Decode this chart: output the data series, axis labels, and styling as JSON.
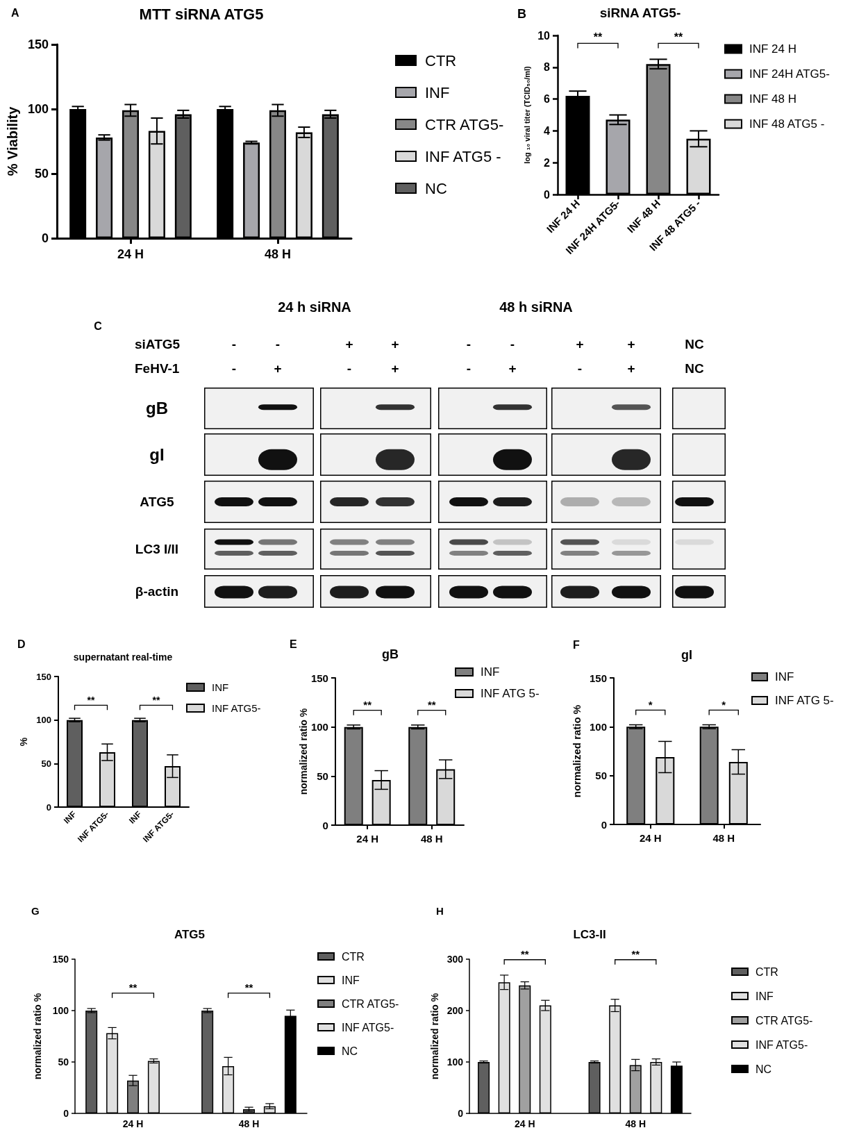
{
  "chart_data": [
    {
      "type": "bar",
      "title": "MTT siRNA ATG5",
      "ylabel": "% Viability",
      "annotations": [
        "A"
      ],
      "categories": [
        "24 H",
        "48 H"
      ],
      "series": [
        {
          "name": "CTR",
          "color": "#000000",
          "values": [
            100,
            100
          ],
          "errors": [
            2,
            2
          ]
        },
        {
          "name": "INF",
          "color": "#a6a6ab",
          "values": [
            78,
            74
          ],
          "errors": [
            2,
            1
          ]
        },
        {
          "name": "CTR ATG5-",
          "color": "#878787",
          "values": [
            99,
            99
          ],
          "errors": [
            4.5,
            4.5
          ]
        },
        {
          "name": "INF ATG5 -",
          "color": "#d9d9d9",
          "values": [
            83,
            82
          ],
          "errors": [
            10,
            4
          ]
        },
        {
          "name": "NC",
          "color": "#5f5f5f",
          "values": [
            96,
            96
          ],
          "errors": [
            3,
            3
          ]
        }
      ],
      "ylim": [
        0,
        150
      ],
      "yticks": [
        0,
        50,
        100,
        150
      ],
      "legend": "right"
    },
    {
      "type": "bar",
      "title": "siRNA ATG5-",
      "ylabel": "log ₁₀ viral titer (TCID₅₀/ml)",
      "annotations": [
        "B",
        "**",
        "**"
      ],
      "categories": [
        "INF 24 H",
        "INF 24H ATG5-",
        "INF 48 H",
        "INF 48 ATG5 -"
      ],
      "series": [
        {
          "name": "INF 24 H",
          "color": "#000000",
          "values": [
            6.2,
            null,
            null,
            null
          ],
          "errors": [
            0.3,
            null,
            null,
            null
          ]
        },
        {
          "name": "INF 24H ATG5-",
          "color": "#a6a6ab",
          "values": [
            null,
            4.7,
            null,
            null
          ],
          "errors": [
            null,
            0.3,
            null,
            null
          ]
        },
        {
          "name": "INF 48 H",
          "color": "#878787",
          "values": [
            null,
            null,
            8.2,
            null
          ],
          "errors": [
            null,
            null,
            0.3,
            null
          ]
        },
        {
          "name": "INF 48 ATG5 -",
          "color": "#d9d9d9",
          "values": [
            null,
            null,
            null,
            3.5
          ],
          "errors": [
            null,
            null,
            null,
            0.5
          ]
        }
      ],
      "ylim": [
        0,
        10
      ],
      "yticks": [
        0,
        2,
        4,
        6,
        8,
        10
      ],
      "legend": "right"
    },
    {
      "type": "other",
      "annotations": [
        "C",
        "24 h siRNA",
        "48 h siRNA",
        "siATG5",
        "FeHV-1",
        "-",
        "-",
        "+",
        "+",
        "-",
        "-",
        "+",
        "+",
        "NC",
        "-",
        "+",
        "-",
        "+",
        "-",
        "+",
        "-",
        "+",
        "NC",
        "gB",
        "gI",
        "ATG5",
        "LC3 I/II",
        "β-actin"
      ]
    },
    {
      "type": "bar",
      "title": "supernatant real-time",
      "ylabel": "%",
      "annotations": [
        "D",
        "**",
        "**"
      ],
      "categories": [
        "INF",
        "INF ATG5-",
        "INF",
        "INF ATG5-"
      ],
      "series": [
        {
          "name": "INF",
          "color": "#5f5f5f",
          "values": [
            100,
            null,
            100,
            null
          ],
          "errors": [
            2,
            null,
            2,
            null
          ]
        },
        {
          "name": "INF ATG5-",
          "color": "#d9d9d9",
          "values": [
            null,
            63,
            null,
            47
          ],
          "errors": [
            null,
            9.5,
            null,
            13
          ]
        }
      ],
      "ylim": [
        0,
        150
      ],
      "yticks": [
        0,
        50,
        100,
        150
      ],
      "legend": "right"
    },
    {
      "type": "bar",
      "title": "gB",
      "ylabel": "normalized ratio %",
      "annotations": [
        "E",
        "**",
        "**"
      ],
      "categories": [
        "24 H",
        "48 H"
      ],
      "series": [
        {
          "name": "INF",
          "color": "#7f7f7f",
          "values": [
            100,
            100
          ],
          "errors": [
            2,
            2
          ]
        },
        {
          "name": "INF ATG 5-",
          "color": "#d9d9d9",
          "values": [
            46,
            57
          ],
          "errors": [
            9.5,
            9.5
          ]
        }
      ],
      "ylim": [
        0,
        150
      ],
      "yticks": [
        0,
        50,
        100,
        150
      ],
      "legend": "right"
    },
    {
      "type": "bar",
      "title": "gI",
      "ylabel": "normalized ratio %",
      "annotations": [
        "F",
        "*",
        "*"
      ],
      "categories": [
        "24 H",
        "48 H"
      ],
      "series": [
        {
          "name": "INF",
          "color": "#7f7f7f",
          "values": [
            100,
            100
          ],
          "errors": [
            2,
            2
          ]
        },
        {
          "name": "INF ATG 5-",
          "color": "#d9d9d9",
          "values": [
            69,
            64
          ],
          "errors": [
            16,
            12.5
          ]
        }
      ],
      "ylim": [
        0,
        150
      ],
      "yticks": [
        0,
        50,
        100,
        150
      ],
      "legend": "right"
    },
    {
      "type": "bar",
      "title": "ATG5",
      "ylabel": "normalized ratio %",
      "annotations": [
        "G",
        "**",
        "**"
      ],
      "categories": [
        "24 H",
        "48 H"
      ],
      "series": [
        {
          "name": "CTR",
          "color": "#5f5f5f",
          "values": [
            100,
            100
          ],
          "errors": [
            2,
            2
          ]
        },
        {
          "name": "INF",
          "color": "#e0e0e0",
          "values": [
            78,
            46
          ],
          "errors": [
            5.5,
            8.5
          ]
        },
        {
          "name": "CTR ATG5-",
          "color": "#7f7f7f",
          "values": [
            32,
            4
          ],
          "errors": [
            5,
            2
          ]
        },
        {
          "name": "INF ATG5-",
          "color": "#e0e0e0",
          "values": [
            51,
            7
          ],
          "errors": [
            2,
            2.5
          ]
        },
        {
          "name": "NC",
          "color": "#000000",
          "values": [
            null,
            95
          ],
          "errors": [
            null,
            5.5
          ]
        }
      ],
      "ylim": [
        0,
        150
      ],
      "yticks": [
        0,
        50,
        100,
        150
      ],
      "legend": "right"
    },
    {
      "type": "bar",
      "title": "LC3-II",
      "ylabel": "normalized ratio %",
      "annotations": [
        "H",
        "**",
        "**"
      ],
      "categories": [
        "24 H",
        "48 H"
      ],
      "series": [
        {
          "name": "CTR",
          "color": "#5f5f5f",
          "values": [
            100,
            100
          ],
          "errors": [
            2,
            2
          ]
        },
        {
          "name": "INF",
          "color": "#e0e0e0",
          "values": [
            255,
            210
          ],
          "errors": [
            14,
            12
          ]
        },
        {
          "name": "CTR ATG5-",
          "color": "#a0a0a0",
          "values": [
            249,
            94
          ],
          "errors": [
            7,
            11
          ]
        },
        {
          "name": "INF ATG5-",
          "color": "#e0e0e0",
          "values": [
            210,
            100
          ],
          "errors": [
            10,
            6
          ]
        },
        {
          "name": "NC",
          "color": "#000000",
          "values": [
            null,
            93
          ],
          "errors": [
            null,
            7
          ]
        }
      ],
      "ylim": [
        0,
        300
      ],
      "yticks": [
        0,
        100,
        200,
        300
      ],
      "legend": "right"
    }
  ]
}
